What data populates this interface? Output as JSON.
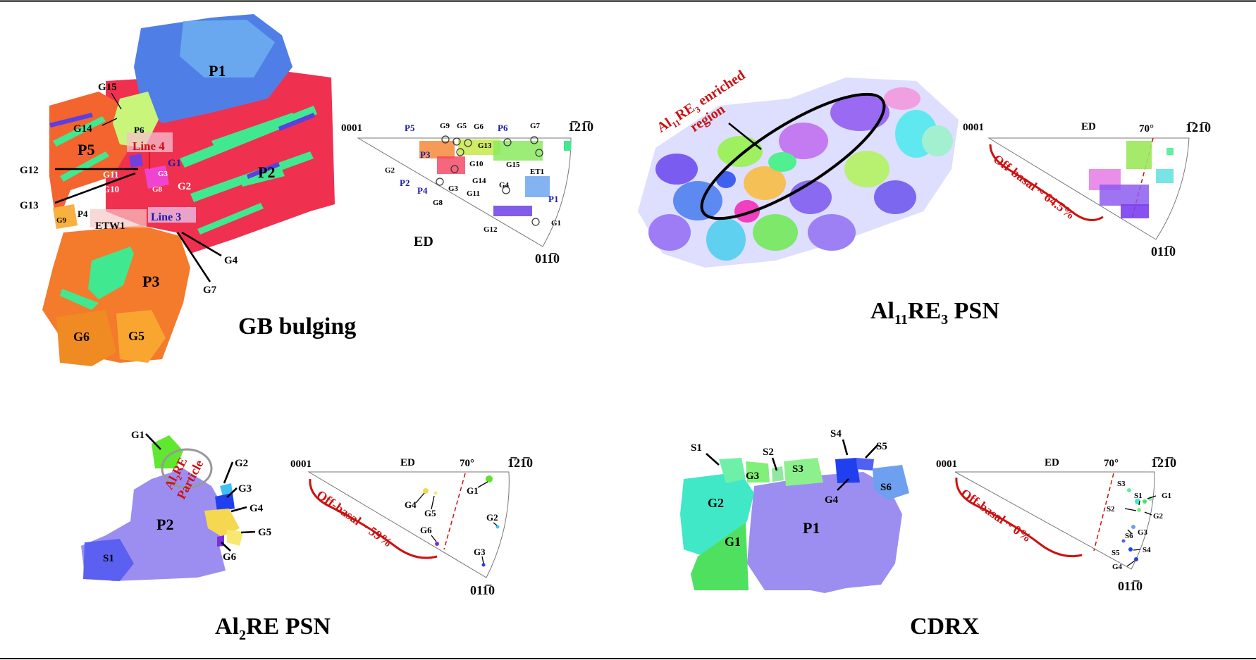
{
  "panels": {
    "gb": {
      "caption": "GB bulging",
      "map_labels": {
        "P1": "P1",
        "P2": "P2",
        "P3": "P3",
        "P4": "P4",
        "P5": "P5",
        "P6": "P6",
        "G1": "G1",
        "G2": "G2",
        "G3": "G3",
        "G4": "G4",
        "G5": "G5",
        "G6": "G6",
        "G7": "G7",
        "G8": "G8",
        "G9": "G9",
        "G10": "G10",
        "G11": "G11",
        "G12": "G12",
        "G13": "G13",
        "G14": "G14",
        "G15": "G15",
        "ETW1": "ETW1",
        "Line4": "Line 4",
        "Line3": "Line 3"
      },
      "pf": {
        "c0001": "0001",
        "c1210": "1̅21̅0",
        "c0110": "011̅0",
        "ed": "ED",
        "P5": "P5",
        "P6": "P6",
        "P2": "P2",
        "P3": "P3",
        "P4": "P4",
        "P1": "P1",
        "G9": "G9",
        "G5": "G5",
        "G6": "G6",
        "G7": "G7",
        "G13": "G13",
        "G10": "G10",
        "G15": "G15",
        "ET1": "ET1",
        "G2": "G2",
        "G14": "G14",
        "G11": "G11",
        "G3": "G3",
        "G4": "G4",
        "G8": "G8",
        "G12": "G12",
        "G1": "G1"
      }
    },
    "al11": {
      "caption_main": "Al",
      "caption_sub1": "11",
      "caption_mid": "RE",
      "caption_sub2": "3",
      "caption_end": " PSN",
      "note_line1_a": "Al",
      "note_line1_sub1": "11",
      "note_line1_b": "RE",
      "note_line1_sub2": "3",
      "note_line1_c": " enriched",
      "note_line2": "region",
      "pf": {
        "c0001": "0001",
        "c1210": "1̅21̅0",
        "c0110": "011̅0",
        "ed": "ED",
        "angle": "70°",
        "offbasal": "Off-basal ~ 64.5%"
      }
    },
    "al2": {
      "caption_main": "Al",
      "caption_sub": "2",
      "caption_end": "RE PSN",
      "particle_a": "Al",
      "particle_sub": "2",
      "particle_b": "RE",
      "particle_line2": "Particle",
      "map_labels": {
        "G1": "G1",
        "G2": "G2",
        "G3": "G3",
        "G4": "G4",
        "G5": "G5",
        "G6": "G6",
        "P2": "P2",
        "S1": "S1"
      },
      "pf": {
        "c0001": "0001",
        "c1210": "1̅21̅0",
        "c0110": "011̅0",
        "ed": "ED",
        "angle": "70°",
        "offbasal": "Off-basal ~ 59%",
        "G1": "G1",
        "G2": "G2",
        "G3": "G3",
        "G4": "G4",
        "G5": "G5",
        "G6": "G6"
      }
    },
    "cdrx": {
      "caption": "CDRX",
      "map_labels": {
        "S1": "S1",
        "S2": "S2",
        "S3": "S3",
        "S4": "S4",
        "S5": "S5",
        "S6": "S6",
        "G1": "G1",
        "G2": "G2",
        "G3": "G3",
        "G4": "G4",
        "P1": "P1"
      },
      "pf": {
        "c0001": "0001",
        "c1210": "1̅21̅0",
        "c0110": "011̅0",
        "ed": "ED",
        "angle": "70°",
        "offbasal": "Off-basal ~ 0%",
        "S3": "S3",
        "S1": "S1",
        "G1": "G1",
        "S2": "S2",
        "G2": "G2",
        "S6": "S6",
        "G3": "G3",
        "S5": "S5",
        "S4": "S4",
        "G4": "G4"
      }
    }
  },
  "colors": {
    "red_annot": "#cc1111",
    "blue_label": "#1a1aa8",
    "matrix_red": "#f0304f",
    "twin_green": "#40e890",
    "p1_blue": "#4f7fe6",
    "lavender": "#9c8ef0"
  }
}
